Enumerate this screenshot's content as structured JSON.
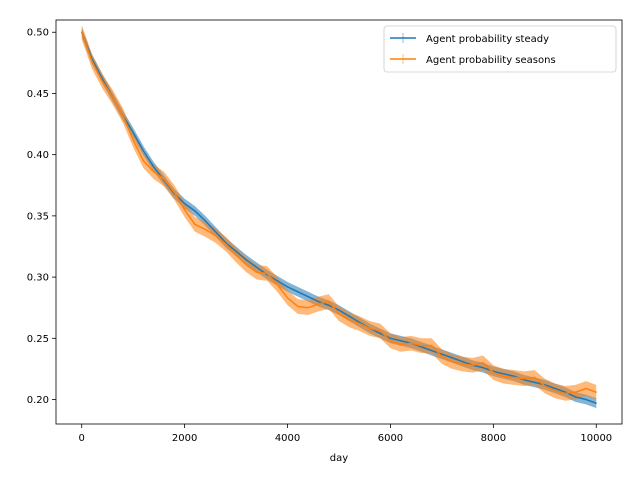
{
  "chart_data": {
    "type": "line",
    "title": "",
    "xlabel": "day",
    "ylabel": "",
    "xlim": [
      -500,
      10500
    ],
    "ylim": [
      0.18,
      0.51
    ],
    "xticks": [
      0,
      2000,
      4000,
      6000,
      8000,
      10000
    ],
    "yticks": [
      0.2,
      0.25,
      0.3,
      0.35,
      0.4,
      0.45,
      0.5
    ],
    "xtick_labels": [
      "0",
      "2000",
      "4000",
      "6000",
      "8000",
      "10000"
    ],
    "ytick_labels": [
      "0.20",
      "0.25",
      "0.30",
      "0.35",
      "0.40",
      "0.45",
      "0.50"
    ],
    "grid": false,
    "legend": {
      "position": "top-right",
      "entries": [
        "Agent probability steady",
        "Agent probability seasons"
      ]
    },
    "series": [
      {
        "name": "Agent probability steady",
        "color": "#1f77b4",
        "error_band": 0.004,
        "x": [
          0,
          200,
          400,
          600,
          800,
          1000,
          1200,
          1400,
          1600,
          1800,
          2000,
          2200,
          2400,
          2600,
          2800,
          3000,
          3200,
          3400,
          3600,
          3800,
          4000,
          4200,
          4400,
          4600,
          4800,
          5000,
          5200,
          5400,
          5600,
          5800,
          6000,
          6200,
          6400,
          6600,
          6800,
          7000,
          7200,
          7400,
          7600,
          7800,
          8000,
          8200,
          8400,
          8600,
          8800,
          9000,
          9200,
          9400,
          9600,
          9800,
          10000
        ],
        "y": [
          0.5,
          0.478,
          0.462,
          0.447,
          0.432,
          0.418,
          0.403,
          0.39,
          0.379,
          0.368,
          0.36,
          0.354,
          0.346,
          0.337,
          0.328,
          0.321,
          0.314,
          0.308,
          0.302,
          0.297,
          0.292,
          0.288,
          0.284,
          0.28,
          0.277,
          0.273,
          0.268,
          0.263,
          0.258,
          0.254,
          0.25,
          0.248,
          0.246,
          0.243,
          0.24,
          0.237,
          0.234,
          0.231,
          0.228,
          0.226,
          0.223,
          0.221,
          0.219,
          0.216,
          0.214,
          0.212,
          0.209,
          0.206,
          0.202,
          0.2,
          0.197
        ]
      },
      {
        "name": "Agent probability seasons",
        "color": "#ff7f0e",
        "error_band": 0.006,
        "x": [
          0,
          200,
          400,
          600,
          800,
          1000,
          1200,
          1400,
          1600,
          1800,
          2000,
          2200,
          2400,
          2600,
          2800,
          3000,
          3200,
          3400,
          3600,
          3800,
          4000,
          4200,
          4400,
          4600,
          4800,
          5000,
          5200,
          5400,
          5600,
          5800,
          6000,
          6200,
          6400,
          6600,
          6800,
          7000,
          7200,
          7400,
          7600,
          7800,
          8000,
          8200,
          8400,
          8600,
          8800,
          9000,
          9200,
          9400,
          9600,
          9800,
          10000
        ],
        "y": [
          0.5,
          0.476,
          0.46,
          0.447,
          0.432,
          0.412,
          0.395,
          0.386,
          0.38,
          0.369,
          0.355,
          0.343,
          0.339,
          0.334,
          0.327,
          0.318,
          0.31,
          0.304,
          0.303,
          0.294,
          0.283,
          0.276,
          0.275,
          0.278,
          0.28,
          0.27,
          0.265,
          0.262,
          0.258,
          0.256,
          0.248,
          0.245,
          0.246,
          0.244,
          0.244,
          0.235,
          0.231,
          0.229,
          0.228,
          0.23,
          0.222,
          0.219,
          0.218,
          0.217,
          0.218,
          0.211,
          0.207,
          0.205,
          0.206,
          0.209,
          0.206
        ]
      }
    ]
  }
}
